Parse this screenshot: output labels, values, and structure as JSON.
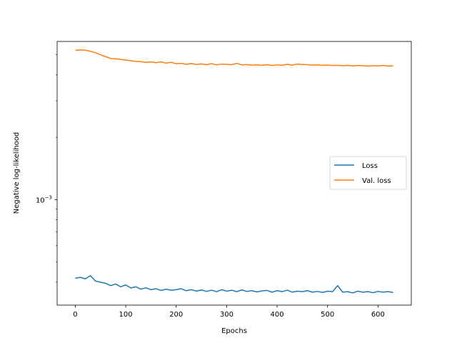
{
  "chart_data": {
    "type": "line",
    "title": "",
    "xlabel": "Epochs",
    "ylabel": "Negative log-likelihood",
    "xlim": [
      -36,
      666
    ],
    "ylim": [
      0.00031,
      0.0058
    ],
    "yscale": "log",
    "grid": false,
    "legend_position": "right",
    "x_ticks": [
      0,
      100,
      200,
      300,
      400,
      500,
      600
    ],
    "x_tick_labels": [
      "0",
      "100",
      "200",
      "300",
      "400",
      "500",
      "600"
    ],
    "y_ticks": [
      0.001
    ],
    "y_tick_labels": [
      "10−3"
    ],
    "y_minor_ticks": [
      0.0004,
      0.0005,
      0.0006,
      0.0007,
      0.0008,
      0.0009,
      0.002,
      0.003,
      0.004,
      0.005
    ],
    "series": [
      {
        "name": "Loss",
        "color": "#1f77b4",
        "x": [
          0,
          10,
          20,
          30,
          40,
          50,
          60,
          70,
          80,
          90,
          100,
          110,
          120,
          130,
          140,
          150,
          160,
          170,
          180,
          190,
          200,
          210,
          220,
          230,
          240,
          250,
          260,
          270,
          280,
          290,
          300,
          310,
          320,
          330,
          340,
          350,
          360,
          370,
          380,
          390,
          400,
          410,
          420,
          430,
          440,
          450,
          460,
          470,
          480,
          490,
          500,
          510,
          520,
          530,
          540,
          550,
          560,
          570,
          580,
          590,
          600,
          610,
          620,
          630
        ],
        "y": [
          0.000418,
          0.000422,
          0.000415,
          0.00043,
          0.000405,
          0.0004,
          0.000395,
          0.000385,
          0.000392,
          0.00038,
          0.000388,
          0.000375,
          0.00038,
          0.00037,
          0.000376,
          0.000368,
          0.000372,
          0.000365,
          0.00037,
          0.000366,
          0.000368,
          0.000372,
          0.000364,
          0.000368,
          0.000362,
          0.000367,
          0.000361,
          0.000366,
          0.00036,
          0.000368,
          0.000362,
          0.000366,
          0.00036,
          0.000367,
          0.000361,
          0.000364,
          0.000359,
          0.000363,
          0.000365,
          0.000358,
          0.000364,
          0.00036,
          0.000366,
          0.000358,
          0.000362,
          0.00036,
          0.000364,
          0.000358,
          0.000361,
          0.000357,
          0.000362,
          0.00036,
          0.000385,
          0.000358,
          0.00036,
          0.000355,
          0.000362,
          0.000358,
          0.00036,
          0.000356,
          0.000361,
          0.000358,
          0.00036,
          0.000357
        ]
      },
      {
        "name": "Val. loss",
        "color": "#ff7f0e",
        "x": [
          0,
          10,
          20,
          30,
          40,
          50,
          60,
          70,
          80,
          90,
          100,
          110,
          120,
          130,
          140,
          150,
          160,
          170,
          180,
          190,
          200,
          210,
          220,
          230,
          240,
          250,
          260,
          270,
          280,
          290,
          300,
          310,
          320,
          330,
          340,
          350,
          360,
          370,
          380,
          390,
          400,
          410,
          420,
          430,
          440,
          450,
          460,
          470,
          480,
          490,
          500,
          510,
          520,
          530,
          540,
          550,
          560,
          570,
          580,
          590,
          600,
          610,
          620,
          630
        ],
        "y": [
          0.00525,
          0.00528,
          0.00526,
          0.0052,
          0.00512,
          0.005,
          0.0049,
          0.0048,
          0.00478,
          0.00475,
          0.00472,
          0.00468,
          0.00465,
          0.00463,
          0.0046,
          0.00462,
          0.00458,
          0.00462,
          0.00456,
          0.0046,
          0.00453,
          0.00455,
          0.0045,
          0.00454,
          0.00449,
          0.00452,
          0.00448,
          0.00453,
          0.00447,
          0.00451,
          0.0045,
          0.00448,
          0.00455,
          0.00447,
          0.00448,
          0.00446,
          0.00447,
          0.00445,
          0.00448,
          0.00444,
          0.00447,
          0.00445,
          0.0045,
          0.00446,
          0.00451,
          0.00449,
          0.00448,
          0.00446,
          0.00447,
          0.00445,
          0.00446,
          0.00444,
          0.00445,
          0.00443,
          0.00445,
          0.00442,
          0.00444,
          0.00443,
          0.00441,
          0.00443,
          0.00442,
          0.00444,
          0.00441,
          0.00443
        ]
      }
    ]
  }
}
